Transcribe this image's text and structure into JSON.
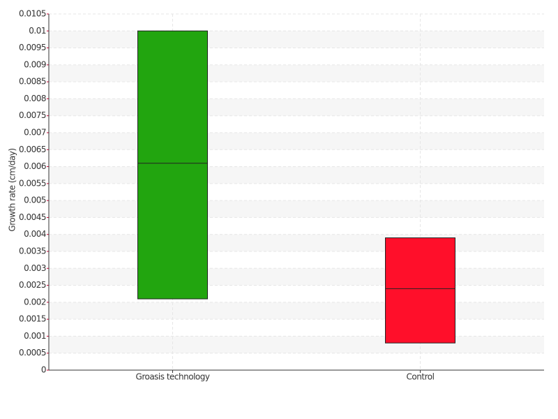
{
  "chart_data": {
    "type": "box",
    "y_label": "Growth rate (cm/day)",
    "categories": [
      "Groasis technology",
      "Control"
    ],
    "low": [
      0.0021,
      0.0008
    ],
    "median": [
      0.0061,
      0.0024
    ],
    "high": [
      0.01,
      0.0039
    ],
    "colors": [
      "#22a50f",
      "#ff0f2a"
    ],
    "ylim": [
      0,
      0.0105
    ],
    "yticks": [
      0,
      0.0005,
      0.001,
      0.0015,
      0.002,
      0.0025,
      0.003,
      0.0035,
      0.004,
      0.0045,
      0.005,
      0.0055,
      0.006,
      0.0065,
      0.007,
      0.0075,
      0.008,
      0.0085,
      0.009,
      0.0095,
      0.01,
      0.0105
    ],
    "grid": true
  }
}
